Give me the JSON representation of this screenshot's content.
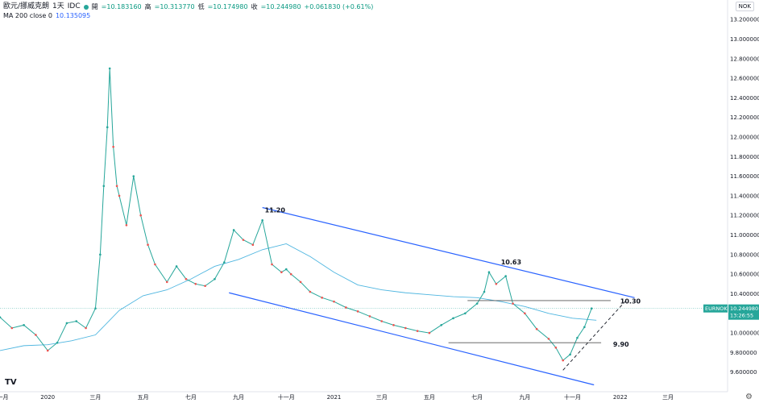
{
  "legend": {
    "symbol": "歐元/挪威克朗",
    "interval": "1天",
    "source": "IDC",
    "open_label": "開",
    "open": "=10.183160",
    "high_label": "高",
    "high": "=10.313770",
    "low_label": "低",
    "low": "=10.174980",
    "close_label": "收",
    "close": "=10.244980",
    "change": "+0.061830 (+0.61%)",
    "ma_label": "MA 200 close 0",
    "ma_value": "10.135095"
  },
  "currency_selector": "NOK",
  "price_badge": {
    "symbol": "EURNOK",
    "value": "10.244980",
    "timer": "13:26:55"
  },
  "logo": "TV",
  "chart_data": {
    "type": "line",
    "title": "",
    "price_axis_labels": [
      "13.200000",
      "13.000000",
      "12.800000",
      "12.600000",
      "12.400000",
      "12.200000",
      "12.000000",
      "11.800000",
      "11.600000",
      "11.400000",
      "11.200000",
      "11.000000",
      "10.800000",
      "10.600000",
      "10.400000",
      "10.200000",
      "10.000000",
      "9.800000",
      "9.600000"
    ],
    "price_axis_values": [
      13.2,
      13.0,
      12.8,
      12.6,
      12.4,
      12.2,
      12.0,
      11.8,
      11.6,
      11.4,
      11.2,
      11.0,
      10.8,
      10.6,
      10.4,
      10.2,
      10.0,
      9.8,
      9.6
    ],
    "ylim": [
      9.4,
      13.3
    ],
    "time_axis_labels": [
      "十一月",
      "2020",
      "三月",
      "五月",
      "七月",
      "九月",
      "十一月",
      "2021",
      "三月",
      "五月",
      "七月",
      "九月",
      "十一月",
      "2022",
      "三月"
    ],
    "time_axis_months": [
      0,
      2,
      4,
      6,
      8,
      10,
      12,
      14,
      16,
      18,
      20,
      22,
      24,
      26,
      28
    ],
    "xlim": [
      0,
      30.5
    ],
    "series": [
      {
        "role": "price",
        "color": "#26a69a",
        "x": [
          0,
          0.5,
          1,
          1.5,
          2,
          2.4,
          2.8,
          3.2,
          3.6,
          4.0,
          4.2,
          4.35,
          4.5,
          4.6,
          4.75,
          4.9,
          5.0,
          5.3,
          5.6,
          5.9,
          6.2,
          6.5,
          7.0,
          7.4,
          7.8,
          8.2,
          8.6,
          9.0,
          9.4,
          9.8,
          10.2,
          10.6,
          11.0,
          11.4,
          11.8,
          12.0,
          12.2,
          12.6,
          13.0,
          13.5,
          14.0,
          14.5,
          15.0,
          15.5,
          16.0,
          16.5,
          17.0,
          17.5,
          18.0,
          18.5,
          19.0,
          19.5,
          20.0,
          20.3,
          20.5,
          20.8,
          21.2,
          21.5,
          22.0,
          22.5,
          23.0,
          23.3,
          23.6,
          23.9,
          24.2,
          24.5,
          24.8
        ],
        "y": [
          10.16,
          10.05,
          10.08,
          9.98,
          9.82,
          9.9,
          10.1,
          10.12,
          10.05,
          10.25,
          10.8,
          11.5,
          12.1,
          12.7,
          11.9,
          11.5,
          11.4,
          11.1,
          11.6,
          11.2,
          10.9,
          10.7,
          10.52,
          10.68,
          10.55,
          10.5,
          10.48,
          10.55,
          10.72,
          11.05,
          10.95,
          10.9,
          11.15,
          10.7,
          10.62,
          10.65,
          10.6,
          10.52,
          10.42,
          10.36,
          10.32,
          10.26,
          10.22,
          10.17,
          10.12,
          10.08,
          10.05,
          10.02,
          10.0,
          10.08,
          10.15,
          10.2,
          10.3,
          10.42,
          10.62,
          10.5,
          10.58,
          10.3,
          10.2,
          10.04,
          9.94,
          9.85,
          9.72,
          9.78,
          9.95,
          10.06,
          10.25
        ]
      },
      {
        "role": "ma200",
        "color": "#4fb6e0",
        "x": [
          0,
          1,
          2,
          3,
          4,
          5,
          6,
          7,
          8,
          9,
          10,
          11,
          12,
          13,
          14,
          15,
          16,
          17,
          18,
          19,
          20,
          21,
          22,
          23,
          24,
          25
        ],
        "y": [
          9.82,
          9.87,
          9.88,
          9.92,
          9.98,
          10.23,
          10.38,
          10.44,
          10.55,
          10.68,
          10.75,
          10.85,
          10.91,
          10.78,
          10.62,
          10.49,
          10.44,
          10.41,
          10.39,
          10.37,
          10.36,
          10.32,
          10.27,
          10.2,
          10.15,
          10.13
        ]
      }
    ],
    "annotations": [
      {
        "label": "11.20",
        "x": 11.1,
        "y": 11.23
      },
      {
        "label": "10.63",
        "x": 21.0,
        "y": 10.7
      },
      {
        "label": "10.30",
        "x": 26.0,
        "y": 10.3
      },
      {
        "label": "9.90",
        "x": 25.7,
        "y": 9.86
      }
    ],
    "trend_lines": [
      {
        "type": "channel-upper",
        "x1": 11.0,
        "y1": 11.28,
        "x2": 26.6,
        "y2": 10.36
      },
      {
        "type": "channel-lower",
        "x1": 9.6,
        "y1": 10.41,
        "x2": 24.9,
        "y2": 9.47
      },
      {
        "type": "resistance",
        "x1": 19.6,
        "y1": 10.33,
        "x2": 25.6,
        "y2": 10.33
      },
      {
        "type": "support",
        "x1": 18.8,
        "y1": 9.9,
        "x2": 25.2,
        "y2": 9.9
      },
      {
        "type": "dashed-projection",
        "x1": 23.6,
        "y1": 9.62,
        "x2": 26.2,
        "y2": 10.32
      }
    ],
    "colors": {
      "channel": "#2962ff",
      "level": "#555555",
      "last_price": "#26a69a",
      "ma": "#4fb6e0"
    }
  }
}
